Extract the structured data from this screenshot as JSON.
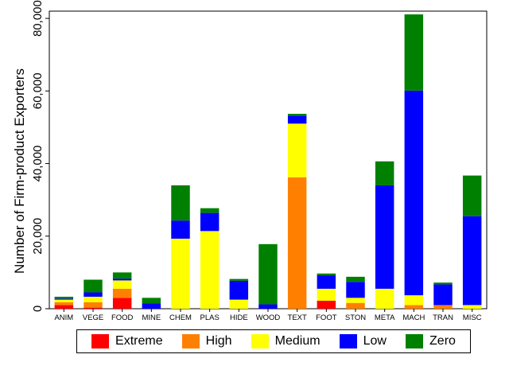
{
  "chart_data": {
    "type": "bar",
    "stacked": true,
    "ylabel": "Number of Firm-product Exporters",
    "xlabel": "",
    "ylim": [
      0,
      82000
    ],
    "yticks": [
      0,
      20000,
      40000,
      60000,
      80000
    ],
    "ytick_labels": [
      "0",
      "20,000",
      "40,000",
      "60,000",
      "80,000"
    ],
    "grid": false,
    "legend_position": "bottom",
    "categories": [
      "ANIM",
      "VEGE",
      "FOOD",
      "MINE",
      "CHEM",
      "PLAS",
      "HIDE",
      "WOOD",
      "TEXT",
      "FOOT",
      "STON",
      "META",
      "MACH",
      "TRAN",
      "MISC"
    ],
    "series": [
      {
        "name": "Extreme",
        "color": "#ff0000",
        "values": [
          1000,
          300,
          3000,
          0,
          0,
          0,
          0,
          0,
          0,
          2200,
          0,
          0,
          0,
          0,
          0
        ]
      },
      {
        "name": "High",
        "color": "#ff8000",
        "values": [
          800,
          1500,
          2500,
          0,
          0,
          0,
          0,
          0,
          36200,
          0,
          1600,
          0,
          1000,
          1000,
          0
        ]
      },
      {
        "name": "Medium",
        "color": "#ffff00",
        "values": [
          700,
          1500,
          2300,
          0,
          19300,
          21400,
          2500,
          0,
          14800,
          3300,
          1400,
          5500,
          2700,
          0,
          1000
        ]
      },
      {
        "name": "Low",
        "color": "#0000ff",
        "values": [
          300,
          1200,
          500,
          1500,
          5000,
          5000,
          5200,
          1200,
          2200,
          3700,
          4400,
          28500,
          56400,
          5700,
          24500
        ]
      },
      {
        "name": "Zero",
        "color": "#008000",
        "values": [
          500,
          3500,
          1700,
          1500,
          9700,
          1300,
          500,
          16600,
          500,
          500,
          1400,
          6600,
          21000,
          500,
          11200
        ]
      }
    ]
  }
}
